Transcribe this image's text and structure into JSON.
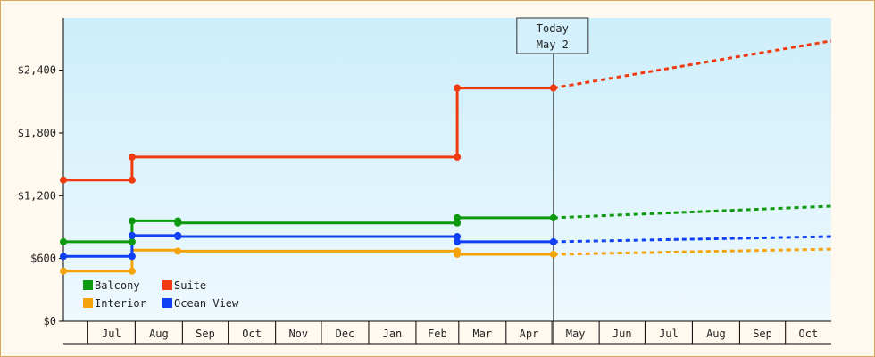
{
  "chart_data": {
    "type": "line",
    "title": "",
    "xlabel": "",
    "ylabel": "",
    "ylim": [
      0,
      2900
    ],
    "y_ticks": [
      "$0",
      "$600",
      "$1,200",
      "$1,800",
      "$2,400"
    ],
    "y_tick_values": [
      0,
      600,
      1200,
      1800,
      2400
    ],
    "x_months": [
      "Jul",
      "Aug",
      "Sep",
      "Oct",
      "Nov",
      "Dec",
      "Jan",
      "Feb",
      "Mar",
      "Apr",
      "May",
      "Jun",
      "Jul",
      "Aug",
      "Sep",
      "Oct"
    ],
    "x_month_starts": [
      "Jul 1",
      "Aug 1",
      "Sep 1",
      "Oct 1",
      "Nov 1",
      "Dec 1",
      "Jan 1",
      "Feb 1",
      "Mar 1",
      "Apr 1",
      "May 1",
      "Jun 1",
      "Jul 1",
      "Aug 1",
      "Sep 1",
      "Oct 1"
    ],
    "x_range": [
      "Jun 15",
      "Oct 31"
    ],
    "today": {
      "label": "Today",
      "date": "May 2"
    },
    "legend_placement": "bottom-left",
    "series": [
      {
        "name": "Balcony",
        "color": "#0e9a0e",
        "history": [
          [
            "Jun 15",
            760
          ],
          [
            "Jul 30",
            760
          ],
          [
            "Jul 30",
            960
          ],
          [
            "Aug 29",
            960
          ],
          [
            "Aug 29",
            940
          ],
          [
            "Feb 28",
            940
          ],
          [
            "Feb 28",
            990
          ],
          [
            "May 2",
            990
          ]
        ],
        "markers": [
          [
            "Jun 15",
            760
          ],
          [
            "Jul 30",
            760
          ],
          [
            "Jul 30",
            960
          ],
          [
            "Aug 29",
            960
          ],
          [
            "Aug 29",
            940
          ],
          [
            "Feb 28",
            940
          ],
          [
            "Feb 28",
            990
          ],
          [
            "May 2",
            990
          ]
        ],
        "forecast": [
          [
            "May 2",
            990
          ],
          [
            "Oct 31",
            1100
          ]
        ]
      },
      {
        "name": "Suite",
        "color": "#f03a10",
        "history": [
          [
            "Jun 15",
            1350
          ],
          [
            "Jul 30",
            1350
          ],
          [
            "Jul 30",
            1570
          ],
          [
            "Feb 28",
            1570
          ],
          [
            "Feb 28",
            2230
          ],
          [
            "May 2",
            2230
          ]
        ],
        "markers": [
          [
            "Jun 15",
            1350
          ],
          [
            "Jul 30",
            1350
          ],
          [
            "Jul 30",
            1570
          ],
          [
            "Feb 28",
            1570
          ],
          [
            "Feb 28",
            2230
          ],
          [
            "May 2",
            2230
          ]
        ],
        "forecast": [
          [
            "May 2",
            2230
          ],
          [
            "Oct 31",
            2680
          ]
        ]
      },
      {
        "name": "Interior",
        "color": "#f5a30a",
        "history": [
          [
            "Jun 15",
            480
          ],
          [
            "Jul 30",
            480
          ],
          [
            "Jul 30",
            680
          ],
          [
            "Aug 29",
            680
          ],
          [
            "Aug 29",
            670
          ],
          [
            "Feb 28",
            670
          ],
          [
            "Feb 28",
            640
          ],
          [
            "May 2",
            640
          ]
        ],
        "markers": [
          [
            "Jun 15",
            480
          ],
          [
            "Jul 30",
            480
          ],
          [
            "Aug 29",
            670
          ],
          [
            "Feb 28",
            670
          ],
          [
            "Feb 28",
            640
          ],
          [
            "May 2",
            640
          ]
        ],
        "forecast": [
          [
            "May 2",
            640
          ],
          [
            "Oct 31",
            690
          ]
        ]
      },
      {
        "name": "Ocean View",
        "color": "#1040f5",
        "history": [
          [
            "Jun 15",
            620
          ],
          [
            "Jul 30",
            620
          ],
          [
            "Jul 30",
            820
          ],
          [
            "Aug 29",
            820
          ],
          [
            "Aug 29",
            810
          ],
          [
            "Feb 28",
            810
          ],
          [
            "Feb 28",
            760
          ],
          [
            "May 2",
            760
          ]
        ],
        "markers": [
          [
            "Jun 15",
            620
          ],
          [
            "Jul 30",
            620
          ],
          [
            "Jul 30",
            820
          ],
          [
            "Aug 29",
            820
          ],
          [
            "Aug 29",
            810
          ],
          [
            "Feb 28",
            810
          ],
          [
            "Feb 28",
            760
          ],
          [
            "May 2",
            760
          ]
        ],
        "forecast": [
          [
            "May 2",
            760
          ],
          [
            "Oct 31",
            810
          ]
        ]
      }
    ]
  }
}
